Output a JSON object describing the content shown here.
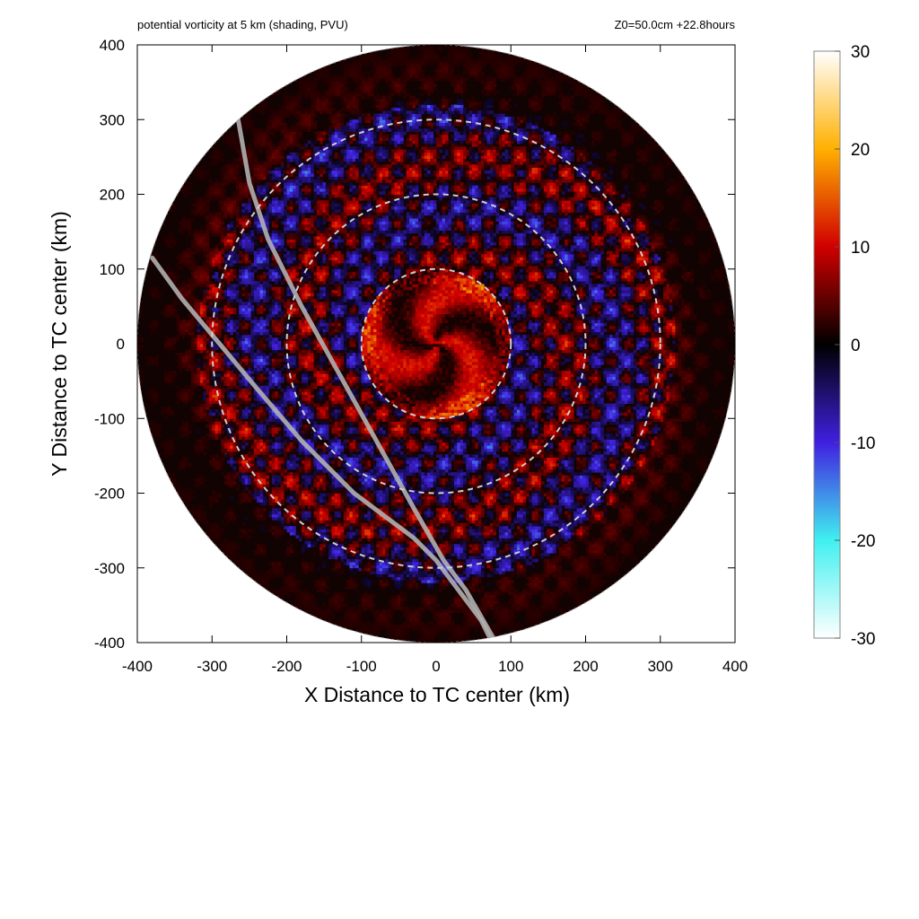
{
  "chart_data": {
    "type": "heatmap",
    "title": "potential vorticity at 5 km (shading, PVU)",
    "annotation": "Z0=50.0cm  +22.8hours",
    "xlabel": "X Distance to TC center (km)",
    "ylabel": "Y Distance to TC center (km)",
    "xlim": [
      -400,
      400
    ],
    "ylim": [
      -400,
      400
    ],
    "x_ticks": [
      -400,
      -300,
      -200,
      -100,
      0,
      100,
      200,
      300,
      400
    ],
    "y_ticks": [
      -400,
      -300,
      -200,
      -100,
      0,
      100,
      200,
      300,
      400
    ],
    "x_tick_labels": [
      "-400",
      "-300",
      "-200",
      "-100",
      "0",
      "100",
      "200",
      "300",
      "400"
    ],
    "y_tick_labels": [
      "400",
      "300",
      "200",
      "100",
      "0",
      "-100",
      "-200",
      "-300",
      "-400"
    ],
    "domain_radius_km": 400,
    "range_rings_km": [
      100,
      200,
      300
    ],
    "colorbar": {
      "min": -30,
      "max": 30,
      "ticks": [
        30,
        20,
        10,
        0,
        -10,
        -20,
        -30
      ],
      "tick_labels": [
        "30",
        "20",
        "10",
        "0",
        "-10",
        "-20",
        "-30"
      ],
      "stops": [
        {
          "value": -30,
          "color": "#ffffff"
        },
        {
          "value": -20,
          "color": "#40f0f0"
        },
        {
          "value": -10,
          "color": "#4020e0"
        },
        {
          "value": 0,
          "color": "#000000"
        },
        {
          "value": 10,
          "color": "#d00000"
        },
        {
          "value": 20,
          "color": "#ffb000"
        },
        {
          "value": 30,
          "color": "#ffffff"
        }
      ]
    },
    "grey_lines_km": [
      {
        "points": [
          [
            -265,
            300
          ],
          [
            -250,
            215
          ],
          [
            -225,
            140
          ],
          [
            -180,
            50
          ],
          [
            -130,
            -40
          ],
          [
            -80,
            -130
          ],
          [
            -30,
            -220
          ],
          [
            10,
            -290
          ],
          [
            40,
            -330
          ],
          [
            80,
            -400
          ]
        ]
      },
      {
        "points": [
          [
            -380,
            115
          ],
          [
            -340,
            60
          ],
          [
            -290,
            0
          ],
          [
            -240,
            -60
          ],
          [
            -180,
            -130
          ],
          [
            -110,
            -200
          ],
          [
            -30,
            -260
          ],
          [
            0,
            -290
          ],
          [
            60,
            -370
          ],
          [
            75,
            -400
          ]
        ]
      }
    ]
  }
}
